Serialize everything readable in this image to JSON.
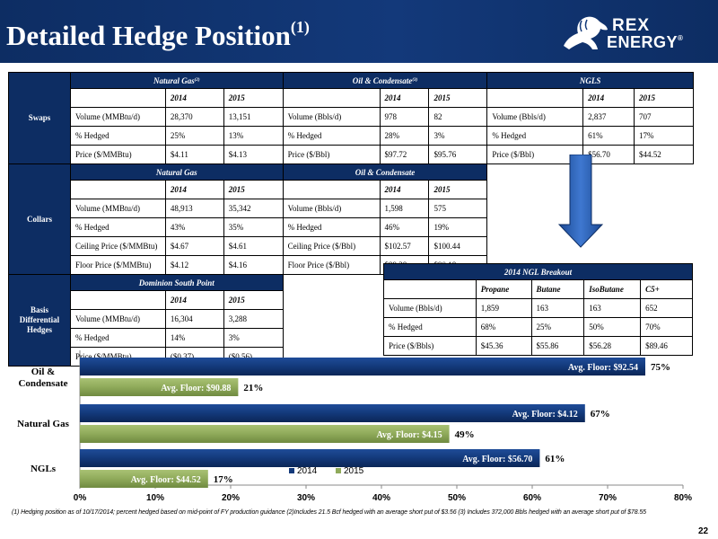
{
  "header": {
    "title": "Detailed Hedge Position",
    "title_sup": "(1)"
  },
  "logo": {
    "line1": "REX",
    "line2": "ENERGY",
    "mark": "®"
  },
  "swaps": {
    "section": "Swaps",
    "groups": [
      {
        "name": "Natural Gas",
        "sup": "(2)"
      },
      {
        "name": "Oil & Condensate",
        "sup": "(3)"
      },
      {
        "name": "NGLS",
        "sup": ""
      }
    ],
    "years": [
      "2014",
      "2015"
    ],
    "rows": [
      [
        "Volume (MMBtu/d)",
        "28,370",
        "13,151",
        "Volume (Bbls/d)",
        "978",
        "82",
        "Volume (Bbls/d)",
        "2,837",
        "707"
      ],
      [
        "% Hedged",
        "25%",
        "13%",
        "% Hedged",
        "28%",
        "3%",
        "% Hedged",
        "61%",
        "17%"
      ],
      [
        "Price ($/MMBtu)",
        "$4.11",
        "$4.13",
        "Price ($/Bbl)",
        "$97.72",
        "$95.76",
        "Price ($/Bbl)",
        "$56.70",
        "$44.52"
      ]
    ]
  },
  "collars": {
    "section": "Collars",
    "groups": [
      "Natural Gas",
      "Oil & Condensate"
    ],
    "years": [
      "2014",
      "2015"
    ],
    "rows": [
      [
        "Volume (MMBtu/d)",
        "48,913",
        "35,342",
        "Volume (Bbls/d)",
        "1,598",
        "575"
      ],
      [
        "% Hedged",
        "43%",
        "35%",
        "% Hedged",
        "46%",
        "19%"
      ],
      [
        "Ceiling Price ($/MMBtu)",
        "$4.67",
        "$4.61",
        "Ceiling Price ($/Bbl)",
        "$102.57",
        "$100.44"
      ],
      [
        "Floor Price ($/MMBtu)",
        "$4.12",
        "$4.16",
        "Floor Price ($/Bbl)",
        "$89.38",
        "$90.18"
      ]
    ]
  },
  "basis": {
    "section": "Basis Differential Hedges",
    "group": "Dominion South Point",
    "years": [
      "2014",
      "2015"
    ],
    "rows": [
      [
        "Volume (MMBtu/d)",
        "16,304",
        "3,288"
      ],
      [
        "% Hedged",
        "14%",
        "3%"
      ],
      [
        "Price ($/MMBtu)",
        "($0.37)",
        "($0.56)"
      ]
    ]
  },
  "ngl_breakout": {
    "title": "2014 NGL Breakout",
    "columns": [
      "Propane",
      "Butane",
      "IsoButane",
      "C5+"
    ],
    "rows": [
      [
        "Volume (Bbls/d)",
        "1,859",
        "163",
        "163",
        "652"
      ],
      [
        "% Hedged",
        "68%",
        "25%",
        "50%",
        "70%"
      ],
      [
        "Price ($/Bbls)",
        "$45.36",
        "$55.86",
        "$56.28",
        "$89.46"
      ]
    ]
  },
  "chart_data": {
    "type": "bar",
    "orientation": "horizontal",
    "categories": [
      "Oil & Condensate",
      "Natural Gas",
      "NGLs"
    ],
    "series": [
      {
        "name": "2014",
        "values": [
          75,
          67,
          61
        ],
        "labels": [
          "75%",
          "67%",
          "61%"
        ],
        "inner_labels": [
          "Avg. Floor: $92.54",
          "Avg. Floor: $4.12",
          "Avg. Floor: $56.70"
        ],
        "color": "#13397a"
      },
      {
        "name": "2015",
        "values": [
          21,
          49,
          17
        ],
        "labels": [
          "21%",
          "49%",
          "17%"
        ],
        "inner_labels": [
          "Avg. Floor: $90.88",
          "Avg. Floor: $4.15",
          "Avg. Floor: $44.52"
        ],
        "color": "#8faa5a"
      }
    ],
    "xlim": [
      0,
      80
    ],
    "xticks": [
      "0%",
      "10%",
      "20%",
      "30%",
      "40%",
      "50%",
      "60%",
      "70%",
      "80%"
    ],
    "legend": "bottom-center",
    "grid": false
  },
  "footnote": "(1) Hedging position as of 10/17/2014; percent hedged based on mid-point of FY production guidance (2)Includes 21.5 Bcf hedged with an average short put of $3.56 (3) Includes 372,000 Bbls hedged with an average short put of $78.55",
  "page_number": "22"
}
